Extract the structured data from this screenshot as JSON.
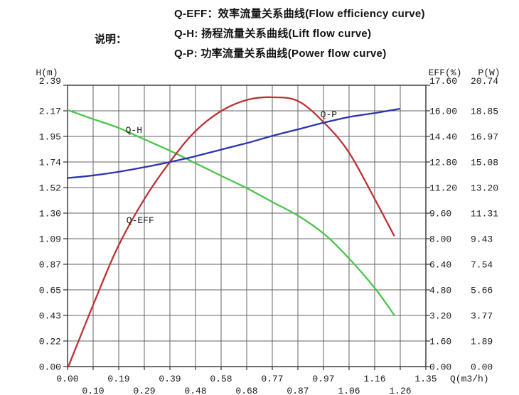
{
  "header": {
    "note_label": "说明：",
    "legend": [
      {
        "label": "Q-EFF：效率流量关系曲线(Flow efficiency curve)"
      },
      {
        "label": "Q-H: 扬程流量关系曲线(Lift flow curve)"
      },
      {
        "label": "Q-P: 功率流量关系曲线(Power flow curve)"
      }
    ]
  },
  "chart_data": {
    "type": "line",
    "grid": true,
    "background": "#ffffff",
    "grid_color": "#666666",
    "frame_color": "#333333",
    "x_axis": {
      "label": "Q(m3/h)",
      "min": 0,
      "max": 1.35,
      "tick_labels": [
        "0.00",
        "0.10",
        "0.19",
        "0.29",
        "0.39",
        "0.48",
        "0.58",
        "0.68",
        "0.77",
        "0.87",
        "0.97",
        "1.06",
        "1.16",
        "1.26",
        "1.35"
      ]
    },
    "y_axis_left": {
      "label": "H(m)",
      "min": 0,
      "max": 2.39,
      "tick_labels": [
        "2.39",
        "2.17",
        "1.95",
        "1.74",
        "1.52",
        "1.30",
        "1.09",
        "0.87",
        "0.65",
        "0.43",
        "0.22",
        "0.00"
      ]
    },
    "y_axis_right_1": {
      "label": "EFF(%)",
      "min": 0,
      "max": 17.6,
      "tick_labels": [
        "17.60",
        "16.00",
        "14.40",
        "12.80",
        "11.20",
        "9.60",
        "8.00",
        "6.40",
        "4.80",
        "3.20",
        "1.60",
        "0.00"
      ]
    },
    "y_axis_right_2": {
      "label": "P(W)",
      "min": 0,
      "max": 20.74,
      "tick_labels": [
        "20.74",
        "18.85",
        "16.97",
        "15.08",
        "13.20",
        "11.31",
        "9.43",
        "7.54",
        "5.66",
        "3.77",
        "1.89",
        "0.00"
      ]
    },
    "series": [
      {
        "name": "Q-H",
        "axis": "left",
        "color": "#4bc44b",
        "x": [
          0.0,
          0.1,
          0.19,
          0.29,
          0.39,
          0.48,
          0.58,
          0.68,
          0.77,
          0.87,
          0.97,
          1.06,
          1.16,
          1.23
        ],
        "y": [
          2.18,
          2.1,
          2.03,
          1.93,
          1.83,
          1.73,
          1.62,
          1.51,
          1.4,
          1.28,
          1.12,
          0.92,
          0.66,
          0.44
        ],
        "label_at": {
          "x": 0.25,
          "y": 2.01
        }
      },
      {
        "name": "Q-EFF",
        "axis": "right1",
        "color": "#bb3232",
        "x": [
          0.003,
          0.1,
          0.19,
          0.29,
          0.39,
          0.48,
          0.58,
          0.68,
          0.77,
          0.87,
          0.97,
          1.06,
          1.16,
          1.23
        ],
        "y": [
          0.0,
          4.0,
          7.5,
          10.5,
          12.9,
          14.7,
          16.0,
          16.7,
          16.85,
          16.6,
          15.2,
          13.4,
          10.4,
          8.2
        ],
        "label_at": {
          "x": 0.274,
          "y": 9.16
        }
      },
      {
        "name": "Q-P",
        "axis": "right2",
        "color": "#2b34b0",
        "x": [
          0.0,
          0.1,
          0.19,
          0.29,
          0.39,
          0.48,
          0.58,
          0.68,
          0.77,
          0.87,
          0.97,
          1.06,
          1.16,
          1.25
        ],
        "y": [
          13.9,
          14.1,
          14.35,
          14.7,
          15.1,
          15.5,
          16.0,
          16.5,
          17.0,
          17.5,
          18.0,
          18.4,
          18.7,
          19.0
        ],
        "label_at": {
          "x": 0.984,
          "y": 18.6
        }
      }
    ]
  }
}
